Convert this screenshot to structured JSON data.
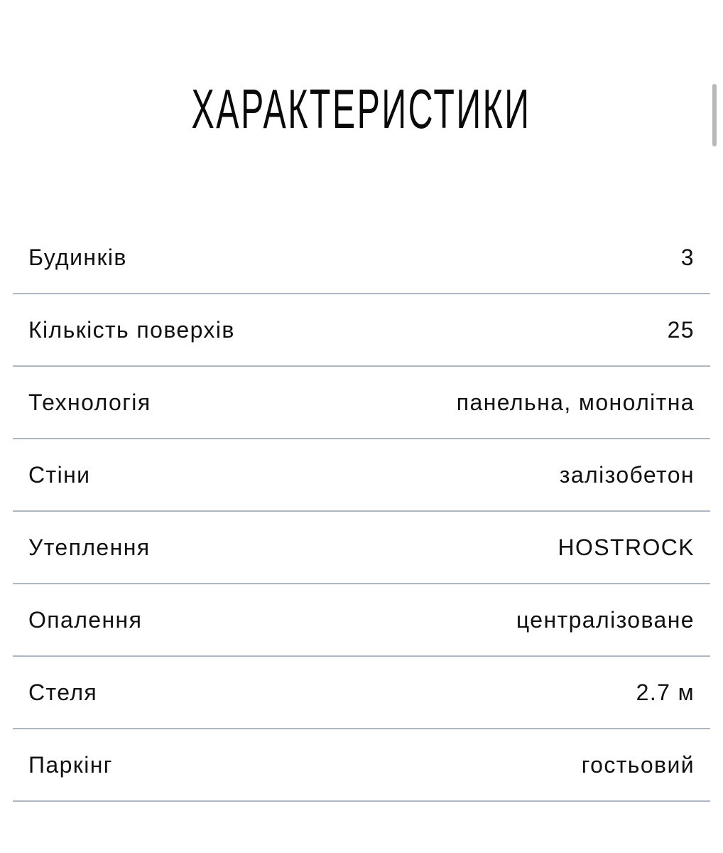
{
  "title": "ХАРАКТЕРИСТИКИ",
  "specs": [
    {
      "label": "Будинків",
      "value": "3"
    },
    {
      "label": "Кількість поверхів",
      "value": "25"
    },
    {
      "label": "Технологія",
      "value": "панельна, монолітна"
    },
    {
      "label": "Стіни",
      "value": "залізобетон"
    },
    {
      "label": "Утеплення",
      "value": "HOSTROCK"
    },
    {
      "label": "Опалення",
      "value": "централізоване"
    },
    {
      "label": "Стеля",
      "value": "2.7 м"
    },
    {
      "label": "Паркінг",
      "value": "гостьовий"
    }
  ]
}
